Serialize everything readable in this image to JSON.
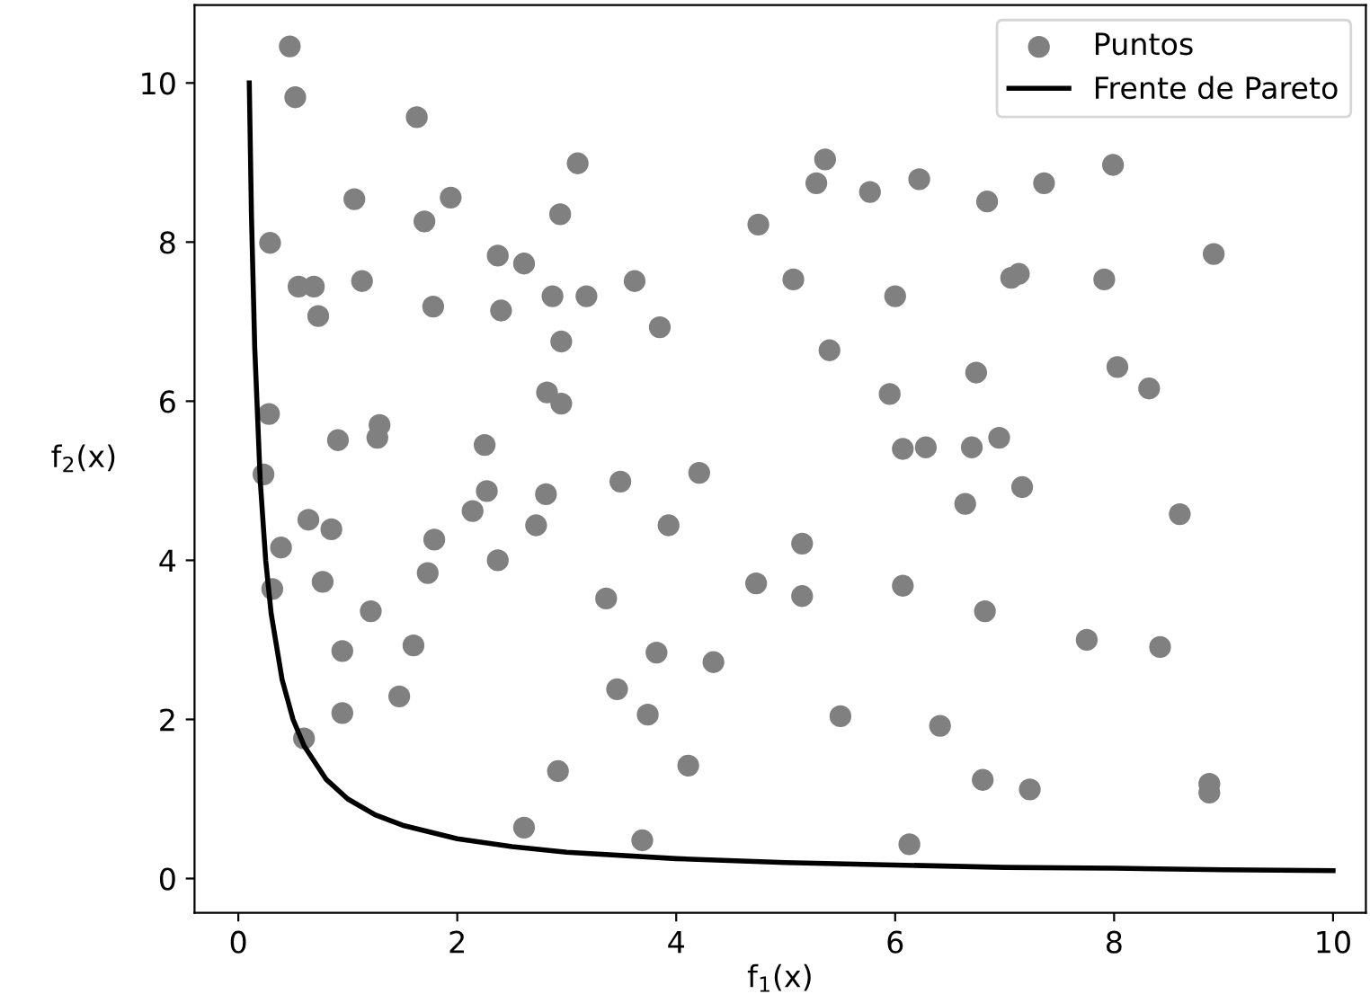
{
  "chart_data": {
    "type": "scatter",
    "xlabel": "f$_{1}$(x)",
    "ylabel": "f$_{2}$(x)",
    "xlim": [
      -0.4,
      10.3
    ],
    "ylim": [
      -0.43,
      10.98
    ],
    "xticks": [
      0,
      2,
      4,
      6,
      8,
      10
    ],
    "yticks": [
      0,
      2,
      4,
      6,
      8,
      10
    ],
    "grid": false,
    "legend": "top right",
    "marker": "circle",
    "series": [
      {
        "name": "Puntos",
        "color": "#808080",
        "x": [
          0.47,
          0.52,
          0.29,
          0.55,
          0.69,
          0.73,
          0.28,
          0.23,
          0.64,
          0.39,
          0.31,
          0.77,
          0.85,
          0.6,
          0.91,
          0.95,
          0.95,
          1.06,
          1.13,
          1.21,
          1.29,
          1.27,
          1.47,
          1.6,
          1.63,
          1.7,
          1.94,
          1.78,
          1.79,
          1.73,
          2.14,
          2.25,
          2.27,
          2.37,
          2.4,
          2.37,
          2.61,
          2.61,
          2.72,
          2.81,
          2.82,
          2.87,
          2.94,
          2.95,
          2.95,
          2.92,
          3.1,
          3.18,
          3.36,
          3.46,
          3.49,
          3.62,
          3.69,
          3.74,
          3.82,
          3.85,
          3.93,
          4.11,
          4.21,
          4.34,
          4.75,
          4.73,
          5.07,
          5.15,
          5.15,
          5.28,
          5.36,
          5.4,
          5.5,
          5.77,
          5.95,
          6.0,
          6.07,
          6.07,
          6.13,
          6.22,
          6.28,
          6.41,
          6.64,
          6.7,
          6.74,
          6.84,
          6.82,
          6.8,
          6.95,
          7.06,
          7.13,
          7.16,
          7.23,
          7.36,
          7.75,
          7.91,
          7.99,
          8.03,
          8.32,
          8.42,
          8.6,
          8.91,
          8.87,
          8.87
        ],
        "values": [
          10.46,
          9.82,
          7.99,
          7.44,
          7.44,
          7.07,
          5.84,
          5.08,
          4.51,
          4.16,
          3.64,
          3.73,
          4.39,
          1.76,
          5.51,
          2.86,
          2.08,
          8.54,
          7.51,
          3.36,
          5.7,
          5.54,
          2.29,
          2.93,
          9.57,
          8.26,
          8.56,
          7.19,
          4.26,
          3.84,
          4.62,
          5.45,
          4.87,
          7.83,
          7.14,
          4.0,
          7.73,
          0.64,
          4.44,
          4.83,
          6.11,
          7.32,
          8.35,
          6.75,
          5.97,
          1.35,
          8.99,
          7.32,
          3.52,
          2.38,
          4.99,
          7.51,
          0.48,
          2.06,
          2.84,
          6.93,
          4.44,
          1.42,
          5.1,
          2.72,
          8.22,
          3.71,
          7.53,
          4.21,
          3.55,
          8.74,
          9.04,
          6.64,
          2.04,
          8.63,
          6.09,
          7.32,
          5.4,
          3.68,
          0.43,
          8.79,
          5.42,
          1.92,
          4.71,
          5.42,
          6.36,
          8.51,
          3.36,
          1.24,
          5.54,
          7.55,
          7.6,
          4.92,
          1.12,
          8.74,
          3.0,
          7.53,
          8.97,
          6.43,
          6.16,
          2.91,
          4.58,
          7.85,
          1.19,
          1.08
        ]
      },
      {
        "name": "Frente de Pareto",
        "type": "line",
        "color": "#000000",
        "marker": "none",
        "line_style": "solid",
        "x": [
          0.1,
          0.12,
          0.15,
          0.2,
          0.25,
          0.3,
          0.4,
          0.5,
          0.6,
          0.8,
          1,
          1.25,
          1.5,
          2,
          2.5,
          3,
          4,
          5,
          6,
          7,
          8,
          9,
          10
        ],
        "values": [
          10,
          8.33,
          6.67,
          5,
          4,
          3.33,
          2.5,
          2,
          1.67,
          1.25,
          1,
          0.8,
          0.67,
          0.5,
          0.4,
          0.33,
          0.25,
          0.2,
          0.17,
          0.14,
          0.13,
          0.11,
          0.1
        ]
      }
    ]
  }
}
